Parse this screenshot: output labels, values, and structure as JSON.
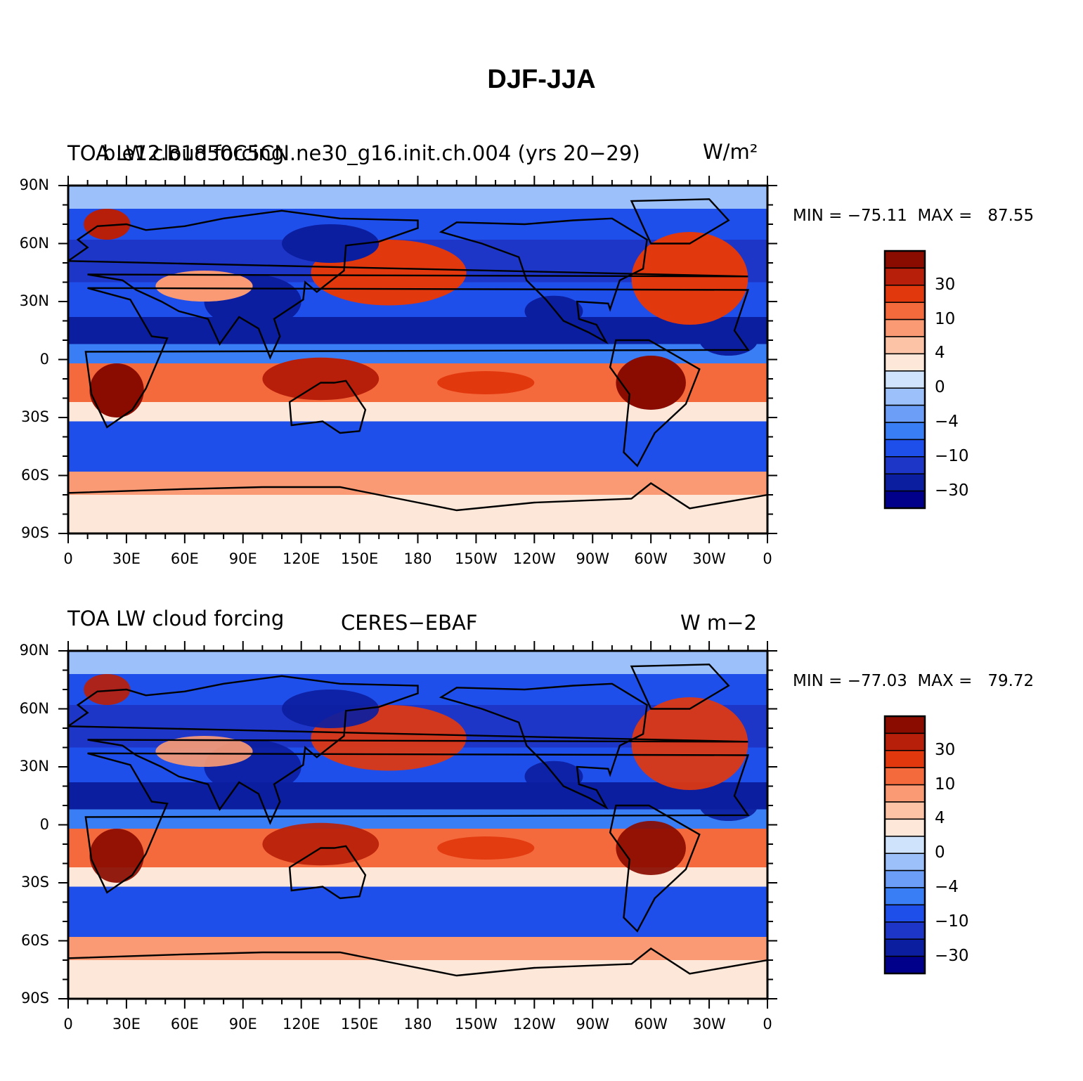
{
  "title": "DJF-JJA",
  "colors": {
    "levels": [
      "#00008a",
      "#0c1ea0",
      "#1e36c8",
      "#1f4fea",
      "#3a7ef5",
      "#6d9ef7",
      "#9cc0fa",
      "#cfe3fd",
      "#fde7d8",
      "#fcc3a6",
      "#f99a74",
      "#f56a3c",
      "#e2380e",
      "#b81f0a",
      "#8a0b00"
    ],
    "land_outline": "#000000"
  },
  "axes": {
    "lat_labels": [
      "90N",
      "60N",
      "30N",
      "0",
      "30S",
      "60S",
      "90S"
    ],
    "lon_labels": [
      "0",
      "30E",
      "60E",
      "90E",
      "120E",
      "150E",
      "180",
      "150W",
      "120W",
      "90W",
      "60W",
      "30W",
      "0"
    ]
  },
  "colorbar": {
    "labels": [
      "30",
      "10",
      "4",
      "0",
      "−4",
      "−10",
      "−30"
    ]
  },
  "panels": [
    {
      "title_left": "TOA LW cloud forcing",
      "title_overlap": "b.e12.B1850C5CN.ne30_g16.init.ch.004 (yrs 20−29)",
      "title_right": "W/m²",
      "title_center": "",
      "stats": "MIN = −75.11  MAX =   87.55",
      "min": -75.11,
      "max": 87.55
    },
    {
      "title_left": "TOA LW cloud forcing",
      "title_overlap": "",
      "title_right": "W m−2",
      "title_center": "CERES−EBAF",
      "stats": "MIN = −77.03  MAX =   79.72",
      "min": -77.03,
      "max": 79.72
    }
  ]
}
